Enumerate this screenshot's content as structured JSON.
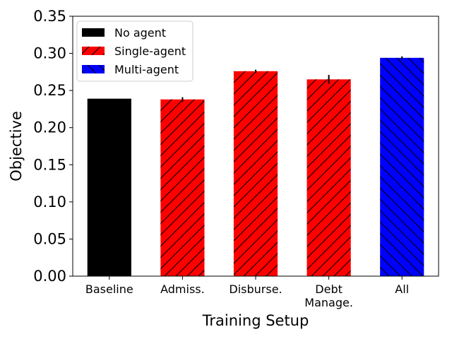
{
  "chart_data": {
    "type": "bar",
    "xlabel": "Training Setup",
    "ylabel": "Objective",
    "ylim": [
      0,
      0.35
    ],
    "yticks": [
      "0.00",
      "0.05",
      "0.10",
      "0.15",
      "0.20",
      "0.25",
      "0.30",
      "0.35"
    ],
    "grid": false,
    "legend_position": "top-left",
    "categories": [
      {
        "lines": [
          "Baseline"
        ]
      },
      {
        "lines": [
          "Admiss."
        ]
      },
      {
        "lines": [
          "Disburse."
        ]
      },
      {
        "lines": [
          "Debt",
          "Manage."
        ]
      },
      {
        "lines": [
          "All"
        ]
      }
    ],
    "values": [
      0.239,
      0.238,
      0.276,
      0.265,
      0.294
    ],
    "errors": [
      0.0,
      0.003,
      0.002,
      0.006,
      0.002
    ],
    "bar_group": [
      0,
      1,
      1,
      1,
      2
    ],
    "groups": [
      {
        "name": "No agent",
        "color": "#000000",
        "hatch": "none"
      },
      {
        "name": "Single-agent",
        "color": "#ff0000",
        "hatch": "forward-diagonal"
      },
      {
        "name": "Multi-agent",
        "color": "#0000ff",
        "hatch": "back-diagonal"
      }
    ]
  }
}
